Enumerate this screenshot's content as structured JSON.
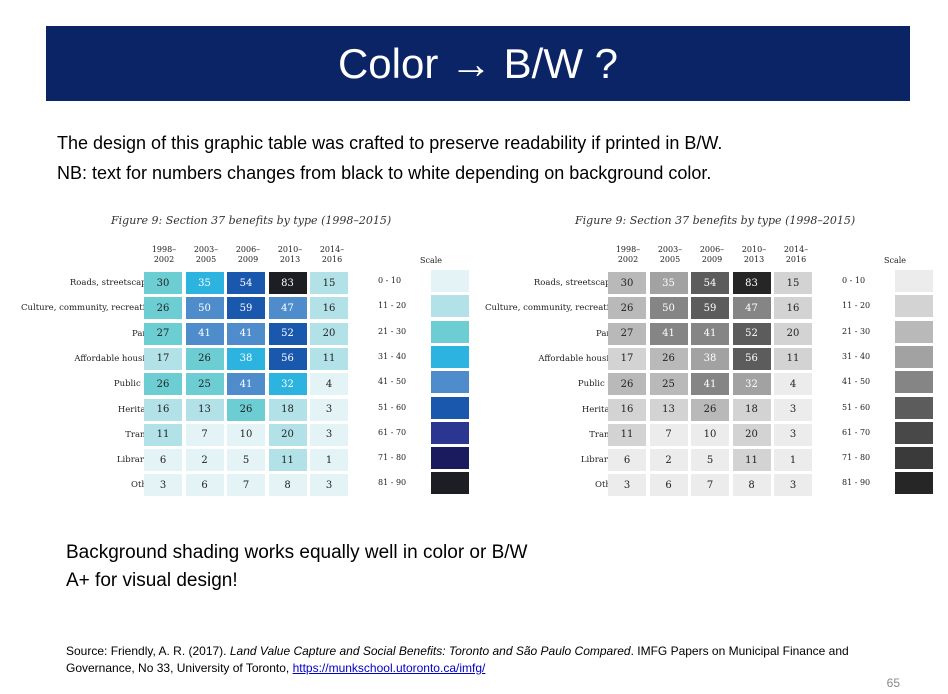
{
  "slide": {
    "title": "Color → B/W ?",
    "intro_line1": "The design of this graphic table was crafted to preserve readability if printed in B/W.",
    "intro_line2": "NB: text for numbers changes from black to white depending on background color.",
    "note_line1": "Background shading works equally well in color or B/W",
    "note_line2": "A+ for visual design!",
    "source_prefix": "Source: Friendly, A. R. (2017). ",
    "source_title": "Land Value Capture and Social Benefits: Toronto and São Paulo Compared",
    "source_suffix": ". IMFG Papers on Municipal Finance and Governance, No 33, University of Toronto, ",
    "source_link": "https://munkschool.utoronto.ca/imfg/",
    "page_number": "65"
  },
  "figure": {
    "title": "Figure 9: Section 37 benefits by type (1998–2015)",
    "columns": [
      "1998–\n2002",
      "2003–\n2005",
      "2006–\n2009",
      "2010–\n2013",
      "2014–\n2016"
    ],
    "rows": [
      {
        "label": "Roads, streetscapes",
        "values": [
          30,
          35,
          54,
          83,
          15
        ]
      },
      {
        "label": "Culture, community, recreation",
        "values": [
          26,
          50,
          59,
          47,
          16
        ]
      },
      {
        "label": "Parks",
        "values": [
          27,
          41,
          41,
          52,
          20
        ]
      },
      {
        "label": "Affordable housing",
        "values": [
          17,
          26,
          38,
          56,
          11
        ]
      },
      {
        "label": "Public art",
        "values": [
          26,
          25,
          41,
          32,
          4
        ]
      },
      {
        "label": "Heritage",
        "values": [
          16,
          13,
          26,
          18,
          3
        ]
      },
      {
        "label": "Transit",
        "values": [
          11,
          7,
          10,
          20,
          3
        ]
      },
      {
        "label": "Libraries",
        "values": [
          6,
          2,
          5,
          11,
          1
        ]
      },
      {
        "label": "Other",
        "values": [
          3,
          6,
          7,
          8,
          3
        ]
      }
    ],
    "scale_title": "Scale",
    "scale_bins": [
      "0 - 10",
      "11 - 20",
      "21 - 30",
      "31 - 40",
      "41 - 50",
      "51 - 60",
      "61 - 70",
      "71 - 80",
      "81 - 90"
    ],
    "color_palette": [
      "#e4f4f6",
      "#b2e2e7",
      "#6ccdd2",
      "#2db3df",
      "#4e8ccc",
      "#1a58ad",
      "#2b3690",
      "#1a1a5e",
      "#1d1d24"
    ],
    "gray_palette": [
      "#ececec",
      "#d3d3d3",
      "#b9b9b9",
      "#a2a2a2",
      "#858585",
      "#5c5c5c",
      "#484848",
      "#3a3a3a",
      "#262626"
    ]
  }
}
